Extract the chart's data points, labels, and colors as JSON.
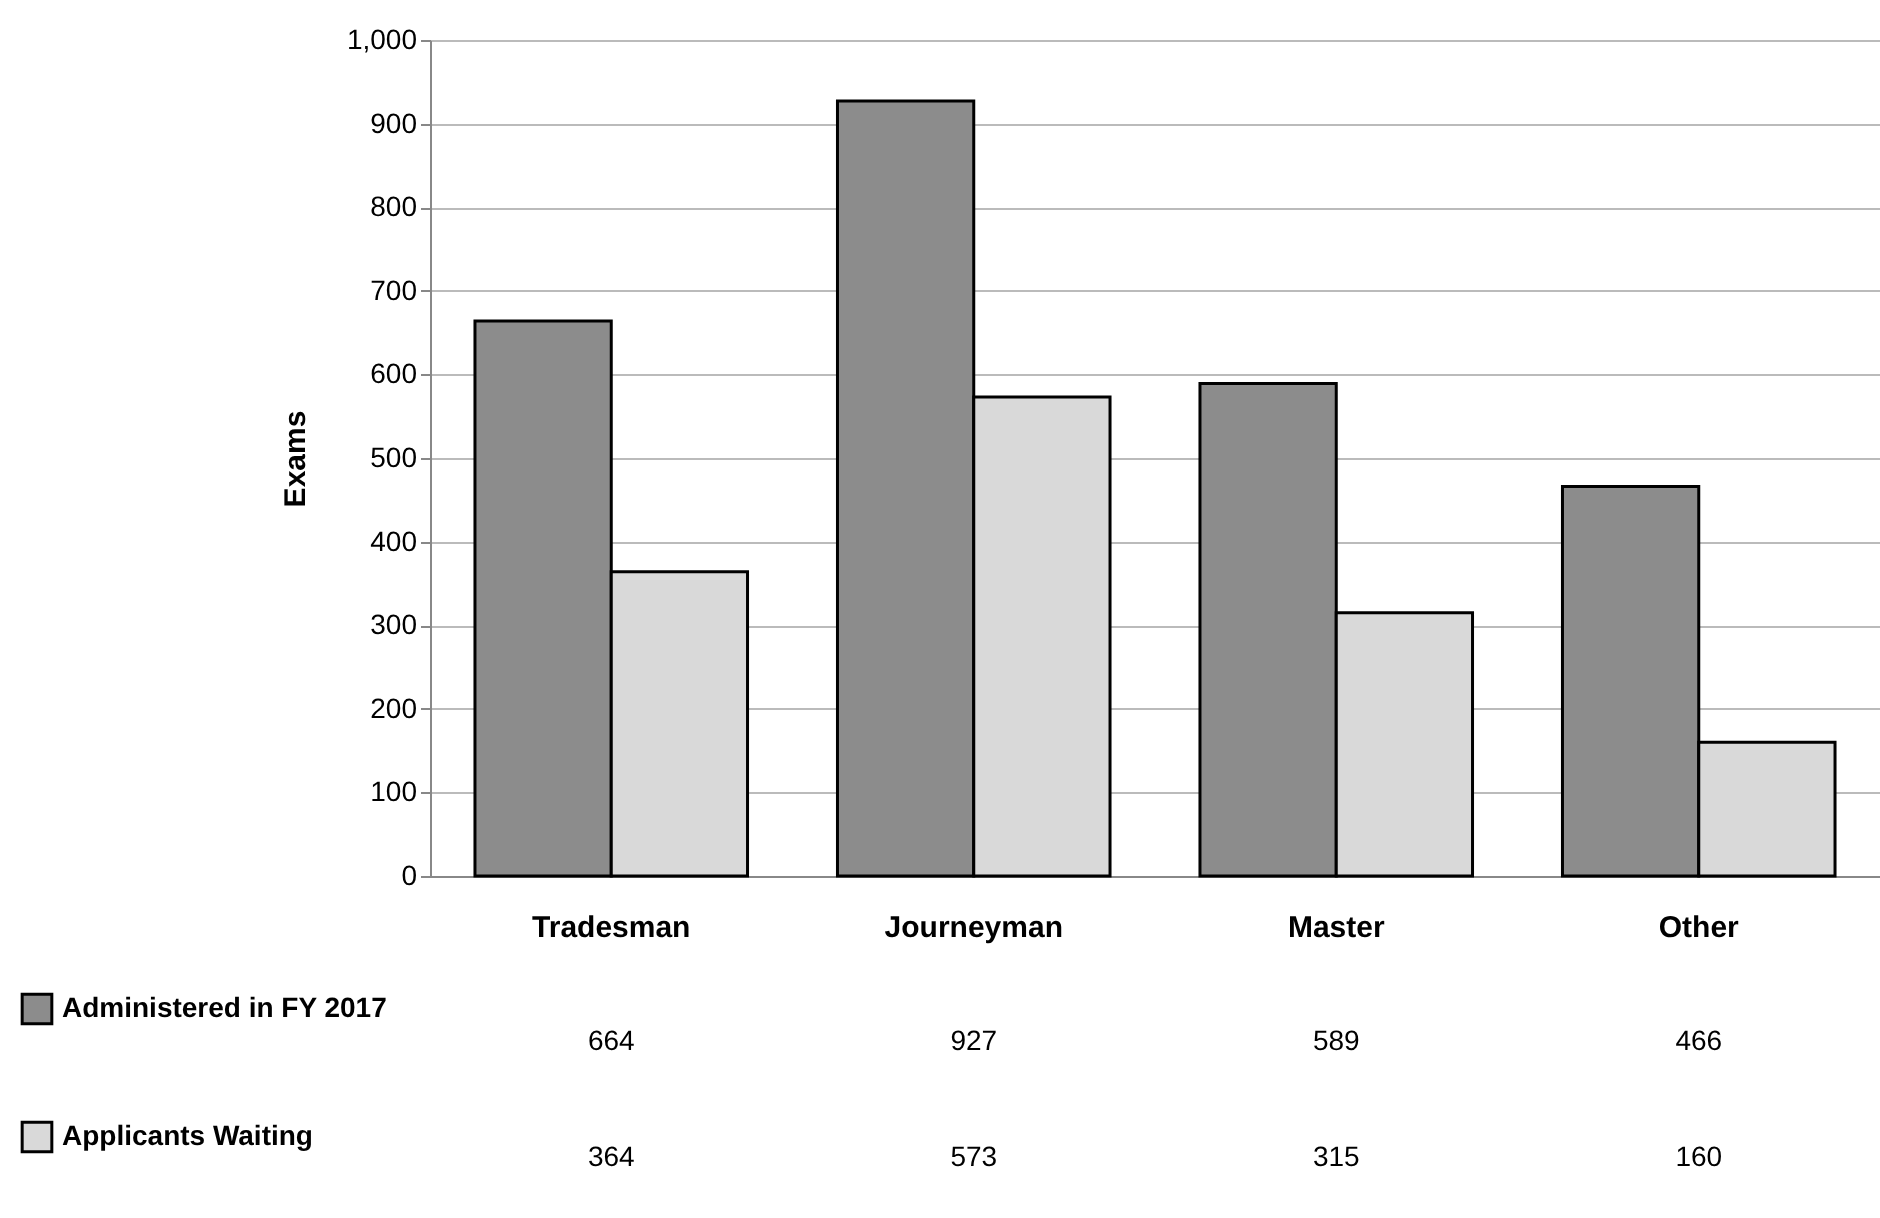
{
  "chart_data": {
    "type": "bar",
    "ylabel": "Exams",
    "categories": [
      "Tradesman",
      "Journeyman",
      "Master",
      "Other"
    ],
    "series": [
      {
        "name": "Administered in FY 2017",
        "color": "#8c8c8c",
        "values": [
          664,
          927,
          589,
          466
        ]
      },
      {
        "name": "Applicants Waiting",
        "color": "#d9d9d9",
        "values": [
          364,
          573,
          315,
          160
        ]
      }
    ],
    "ylim": [
      0,
      1000
    ],
    "yticks": [
      0,
      100,
      200,
      300,
      400,
      500,
      600,
      700,
      800,
      900,
      {
        "value": 1000,
        "label": "1,000"
      }
    ],
    "grid": "y",
    "legend": "bottom left",
    "data_labels": true
  }
}
